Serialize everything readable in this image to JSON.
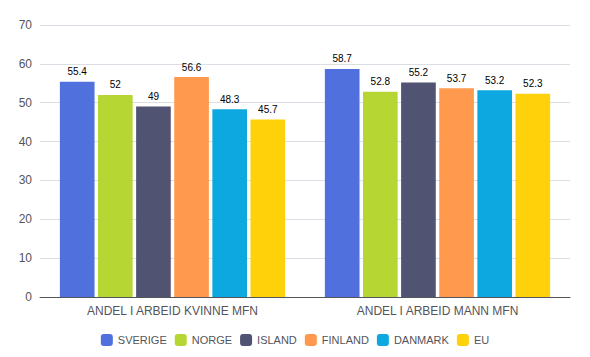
{
  "chart_data": {
    "type": "bar",
    "categories": [
      "ANDEL I ARBEID KVINNE MFN",
      "ANDEL I ARBEID MANN MFN"
    ],
    "series": [
      {
        "name": "SVERIGE",
        "values": [
          55.4,
          58.7
        ]
      },
      {
        "name": "NORGE",
        "values": [
          52.0,
          52.8
        ]
      },
      {
        "name": "ISLAND",
        "values": [
          49.0,
          55.2
        ]
      },
      {
        "name": "FINLAND",
        "values": [
          56.6,
          53.7
        ]
      },
      {
        "name": "DANMARK",
        "values": [
          48.3,
          53.2
        ]
      },
      {
        "name": "EU",
        "values": [
          45.7,
          52.3
        ]
      }
    ],
    "ylim": [
      0,
      70
    ],
    "yticks": [
      0,
      10,
      20,
      30,
      40,
      50,
      60,
      70
    ],
    "grid": true,
    "legend": "bottom",
    "data_labels": true
  }
}
